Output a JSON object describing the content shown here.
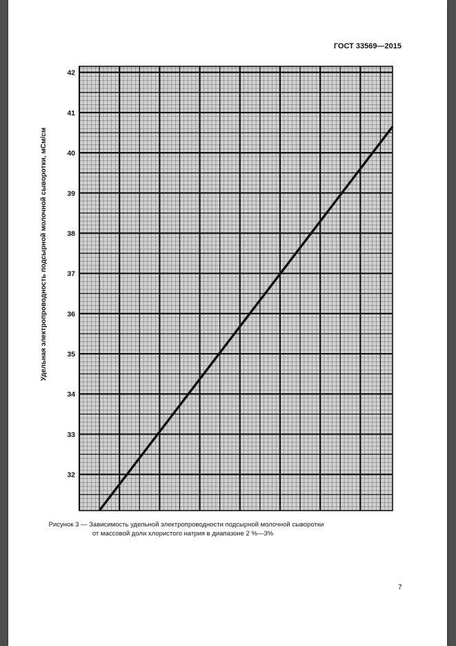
{
  "document": {
    "standard_code": "ГОСТ 33569—2015",
    "page_number": "7"
  },
  "figure": {
    "caption_line1": "Рисунок 3 — Зависимость удельной электропроводности подсырной молочной сыворотки",
    "caption_line2": "от массовой доли хлористого натрия в диапазоне 2 %—3%"
  },
  "chart_data": {
    "type": "line",
    "title": "",
    "xlabel": "",
    "ylabel": "Удельная электропроводность подсырной молочной сыворотки, мСм/см",
    "x_tick_labels": [],
    "ylim": [
      31.1,
      42.15
    ],
    "y_ticks": [
      32,
      33,
      34,
      35,
      36,
      37,
      38,
      39,
      40,
      41,
      42
    ],
    "grid": true,
    "series": [
      {
        "x_frac": [
          0.064,
          1.0
        ],
        "y": [
          31.1,
          40.65
        ]
      }
    ]
  },
  "colors": {
    "grid_fine": "#777777",
    "grid_major": "#111111",
    "plot_bg": "#d2d2d2",
    "line": "#111111"
  }
}
